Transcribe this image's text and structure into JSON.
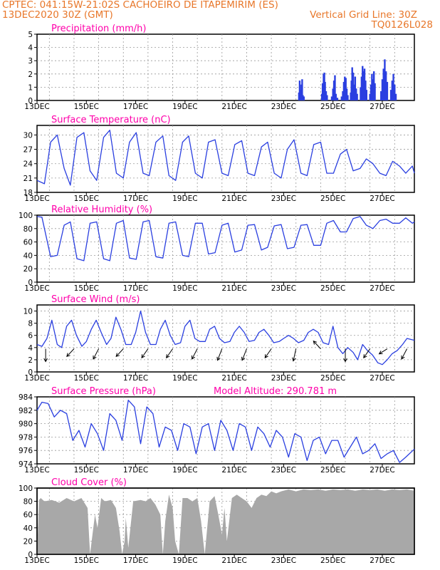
{
  "header": {
    "line1": "CPTEC:   041:15W-21:02S   CACHOEIRO DE ITAPEMIRIM (ES)",
    "line2": "13DEC2020 30Z (GMT)",
    "grid_note": "Vertical Grid Line: 30Z",
    "model_code": "TQ0126L028"
  },
  "colors": {
    "header": "#e8772a",
    "title": "#ff00aa",
    "line": "#2a3fe0",
    "bar": "#a8a8a8",
    "grid": "#999999"
  },
  "chart_data": [
    {
      "id": "precip",
      "type": "bar",
      "title": "Precipitation (mm/h)",
      "xticks": [
        "13DEC",
        "15DEC",
        "17DEC",
        "19DEC",
        "21DEC",
        "23DEC",
        "25DEC",
        "27DEC"
      ],
      "yticks": [
        "0",
        "1",
        "2",
        "3",
        "4",
        "5"
      ],
      "ylim": [
        0,
        5
      ],
      "xlim_days": [
        0,
        15.3
      ],
      "grid": true,
      "bars": [
        [
          10.62,
          0.6
        ],
        [
          10.65,
          1.5
        ],
        [
          10.68,
          0.8
        ],
        [
          10.72,
          1.2
        ],
        [
          10.75,
          1.6
        ],
        [
          10.78,
          0.4
        ],
        [
          10.82,
          0.3
        ],
        [
          11.55,
          0.5
        ],
        [
          11.58,
          1.3
        ],
        [
          11.62,
          2.0
        ],
        [
          11.65,
          2.1
        ],
        [
          11.68,
          1.4
        ],
        [
          11.72,
          0.7
        ],
        [
          11.76,
          0.4
        ],
        [
          11.95,
          0.3
        ],
        [
          12.0,
          0.9
        ],
        [
          12.04,
          1.5
        ],
        [
          12.08,
          1.9
        ],
        [
          12.12,
          0.5
        ],
        [
          12.18,
          0.2
        ],
        [
          12.35,
          0.3
        ],
        [
          12.4,
          0.7
        ],
        [
          12.44,
          1.4
        ],
        [
          12.48,
          1.8
        ],
        [
          12.52,
          1.7
        ],
        [
          12.56,
          0.9
        ],
        [
          12.6,
          0.4
        ],
        [
          12.72,
          0.6
        ],
        [
          12.75,
          1.5
        ],
        [
          12.78,
          2.5
        ],
        [
          12.82,
          2.1
        ],
        [
          12.86,
          1.2
        ],
        [
          12.9,
          1.8
        ],
        [
          12.94,
          0.9
        ],
        [
          12.98,
          0.5
        ],
        [
          13.12,
          1.0
        ],
        [
          13.16,
          1.8
        ],
        [
          13.2,
          2.6
        ],
        [
          13.24,
          2.2
        ],
        [
          13.28,
          2.4
        ],
        [
          13.32,
          1.5
        ],
        [
          13.36,
          0.8
        ],
        [
          13.5,
          0.5
        ],
        [
          13.54,
          1.2
        ],
        [
          13.58,
          2.0
        ],
        [
          13.62,
          1.6
        ],
        [
          13.66,
          2.2
        ],
        [
          13.7,
          1.3
        ],
        [
          13.95,
          0.7
        ],
        [
          14.0,
          1.6
        ],
        [
          14.05,
          2.4
        ],
        [
          14.1,
          3.1
        ],
        [
          14.15,
          2.2
        ],
        [
          14.2,
          1.4
        ],
        [
          14.35,
          0.8
        ],
        [
          14.4,
          1.5
        ],
        [
          14.45,
          2.0
        ],
        [
          14.5,
          1.2
        ],
        [
          14.55,
          0.5
        ]
      ]
    },
    {
      "id": "temp",
      "type": "line",
      "title": "Surface Temperature (nC)",
      "xticks": [
        "13DEC",
        "15DEC",
        "17DEC",
        "19DEC",
        "21DEC",
        "23DEC",
        "25DEC",
        "27DEC"
      ],
      "yticks": [
        "18",
        "21",
        "24",
        "27",
        "30"
      ],
      "ylim": [
        18,
        32
      ],
      "grid": true,
      "x": [
        0,
        0.3,
        0.55,
        0.82,
        1.1,
        1.35,
        1.62,
        1.9,
        2.15,
        2.42,
        2.7,
        2.95,
        3.22,
        3.5,
        3.75,
        4.02,
        4.3,
        4.55,
        4.82,
        5.1,
        5.35,
        5.62,
        5.9,
        6.15,
        6.42,
        6.7,
        6.95,
        7.22,
        7.5,
        7.75,
        8.02,
        8.3,
        8.55,
        8.82,
        9.1,
        9.35,
        9.62,
        9.9,
        10.15,
        10.42,
        10.7,
        10.95,
        11.22,
        11.5,
        11.75,
        12.02,
        12.3,
        12.55,
        12.82,
        13.1,
        13.35,
        13.62,
        13.9,
        14.15,
        14.42,
        14.7,
        14.95,
        15.22,
        15.3
      ],
      "values": [
        20.5,
        19.8,
        28.5,
        30.0,
        23.0,
        19.5,
        29.5,
        30.5,
        22.5,
        20.5,
        29.5,
        31.0,
        22.0,
        21.0,
        28.5,
        30.5,
        22.0,
        21.5,
        28.5,
        29.8,
        21.5,
        20.5,
        28.5,
        29.8,
        22.0,
        21.0,
        28.5,
        29.0,
        22.0,
        21.5,
        28.0,
        28.8,
        22.0,
        21.5,
        27.5,
        28.5,
        22.0,
        21.0,
        27.0,
        29.0,
        22.0,
        21.5,
        28.0,
        28.5,
        22.0,
        22.0,
        26.0,
        27.0,
        22.5,
        23.0,
        25.0,
        24.0,
        22.0,
        21.5,
        24.5,
        23.5,
        22.0,
        23.5,
        22.0
      ]
    },
    {
      "id": "rh",
      "type": "line",
      "title": "Relative Humidity (%)",
      "xticks": [
        "13DEC",
        "15DEC",
        "17DEC",
        "19DEC",
        "21DEC",
        "23DEC",
        "25DEC",
        "27DEC"
      ],
      "yticks": [
        "0",
        "20",
        "40",
        "60",
        "80",
        "100"
      ],
      "ylim": [
        0,
        100
      ],
      "grid": true,
      "x": [
        0,
        0.2,
        0.55,
        0.82,
        1.1,
        1.35,
        1.62,
        1.9,
        2.15,
        2.42,
        2.7,
        2.95,
        3.22,
        3.5,
        3.75,
        4.02,
        4.3,
        4.55,
        4.82,
        5.1,
        5.35,
        5.62,
        5.9,
        6.15,
        6.42,
        6.7,
        6.95,
        7.22,
        7.5,
        7.75,
        8.02,
        8.3,
        8.55,
        8.82,
        9.1,
        9.35,
        9.62,
        9.9,
        10.15,
        10.42,
        10.7,
        10.95,
        11.22,
        11.5,
        11.75,
        12.02,
        12.3,
        12.55,
        12.82,
        13.1,
        13.35,
        13.62,
        13.9,
        14.15,
        14.42,
        14.7,
        14.95,
        15.22,
        15.3
      ],
      "values": [
        98,
        97,
        38,
        40,
        85,
        90,
        35,
        32,
        88,
        90,
        35,
        32,
        88,
        92,
        36,
        34,
        90,
        92,
        38,
        36,
        88,
        90,
        40,
        38,
        88,
        88,
        42,
        44,
        85,
        88,
        45,
        48,
        85,
        86,
        48,
        52,
        84,
        86,
        50,
        52,
        85,
        86,
        55,
        55,
        88,
        92,
        75,
        75,
        95,
        98,
        85,
        80,
        92,
        94,
        88,
        88,
        96,
        88,
        90
      ]
    },
    {
      "id": "wind",
      "type": "line",
      "title": "Surface Wind (m/s)",
      "xticks": [
        "13DEC",
        "15DEC",
        "17DEC",
        "19DEC",
        "21DEC",
        "23DEC",
        "25DEC",
        "27DEC"
      ],
      "yticks": [
        "0",
        "2",
        "4",
        "6",
        "8",
        "10"
      ],
      "ylim": [
        0,
        11
      ],
      "grid": true,
      "x": [
        0,
        0.2,
        0.4,
        0.6,
        0.82,
        1.0,
        1.2,
        1.4,
        1.6,
        1.82,
        2.0,
        2.2,
        2.4,
        2.6,
        2.82,
        3.0,
        3.2,
        3.4,
        3.6,
        3.82,
        4.0,
        4.2,
        4.4,
        4.6,
        4.82,
        5.0,
        5.2,
        5.4,
        5.6,
        5.82,
        6.0,
        6.2,
        6.4,
        6.6,
        6.82,
        7.0,
        7.2,
        7.4,
        7.6,
        7.82,
        8.0,
        8.2,
        8.4,
        8.6,
        8.82,
        9.0,
        9.2,
        9.4,
        9.6,
        9.82,
        10.0,
        10.2,
        10.4,
        10.6,
        10.82,
        11.0,
        11.2,
        11.4,
        11.6,
        11.82,
        12.0,
        12.2,
        12.4,
        12.6,
        12.82,
        13.0,
        13.2,
        13.4,
        13.6,
        13.82,
        14.0,
        14.2,
        14.4,
        14.6,
        14.82,
        15.0,
        15.3
      ],
      "values": [
        4.5,
        4.2,
        5.5,
        8.5,
        4.5,
        4.0,
        7.5,
        8.5,
        6.0,
        4.2,
        5.0,
        7.0,
        8.5,
        6.5,
        4.5,
        5.5,
        9.0,
        7.0,
        4.5,
        4.5,
        6.5,
        10.0,
        6.5,
        4.5,
        4.5,
        7.0,
        8.5,
        6.0,
        4.5,
        4.8,
        7.5,
        8.5,
        5.5,
        5.0,
        5.0,
        7.0,
        7.5,
        5.5,
        4.8,
        5.0,
        6.5,
        7.5,
        6.5,
        5.0,
        5.2,
        6.5,
        7.0,
        6.0,
        4.8,
        5.0,
        5.5,
        6.0,
        5.5,
        4.8,
        5.2,
        6.5,
        7.0,
        6.5,
        4.8,
        4.5,
        7.5,
        4.0,
        3.0,
        4.0,
        3.2,
        2.0,
        4.5,
        3.5,
        2.8,
        1.5,
        1.2,
        2.0,
        3.0,
        3.5,
        4.5,
        5.5,
        5.2
      ],
      "arrows": [
        {
          "x": 0.35,
          "dx": 0,
          "dy": 1
        },
        {
          "x": 1.5,
          "dx": -0.8,
          "dy": 0.6
        },
        {
          "x": 2.5,
          "dx": -0.6,
          "dy": 0.8
        },
        {
          "x": 3.5,
          "dx": -0.8,
          "dy": 0.6
        },
        {
          "x": 4.5,
          "dx": -0.7,
          "dy": 0.7
        },
        {
          "x": 5.5,
          "dx": -0.7,
          "dy": 0.7
        },
        {
          "x": 6.5,
          "dx": -0.6,
          "dy": 0.8
        },
        {
          "x": 7.5,
          "dx": -0.5,
          "dy": 0.9
        },
        {
          "x": 8.5,
          "dx": -0.5,
          "dy": 0.9
        },
        {
          "x": 9.5,
          "dx": -0.7,
          "dy": 0.7
        },
        {
          "x": 10.5,
          "dx": -0.3,
          "dy": 0.95
        },
        {
          "x": 11.5,
          "dx": -0.8,
          "dy": -0.6
        },
        {
          "x": 12.5,
          "dx": 0,
          "dy": 1
        },
        {
          "x": 13.5,
          "dx": -0.7,
          "dy": 0.7
        },
        {
          "x": 14.2,
          "dx": -0.9,
          "dy": 0.4
        },
        {
          "x": 15.0,
          "dx": -0.6,
          "dy": 0.8
        }
      ]
    },
    {
      "id": "pres",
      "type": "line",
      "title": "Surface Pressure (hPa)",
      "extra_label": "Model Altitude: 290.781 m",
      "xticks": [
        "13DEC",
        "15DEC",
        "17DEC",
        "19DEC",
        "21DEC",
        "23DEC",
        "25DEC",
        "27DEC"
      ],
      "yticks": [
        "974",
        "976",
        "978",
        "980",
        "982",
        "984"
      ],
      "ylim": [
        974,
        984
      ],
      "grid": true,
      "x": [
        0,
        0.2,
        0.45,
        0.7,
        0.95,
        1.2,
        1.45,
        1.7,
        1.95,
        2.2,
        2.45,
        2.7,
        2.95,
        3.2,
        3.45,
        3.7,
        3.95,
        4.2,
        4.45,
        4.7,
        4.95,
        5.2,
        5.45,
        5.7,
        5.95,
        6.2,
        6.45,
        6.7,
        6.95,
        7.2,
        7.45,
        7.7,
        7.95,
        8.2,
        8.45,
        8.7,
        8.95,
        9.2,
        9.45,
        9.7,
        9.95,
        10.2,
        10.45,
        10.7,
        10.95,
        11.2,
        11.45,
        11.7,
        11.95,
        12.2,
        12.45,
        12.7,
        12.95,
        13.2,
        13.45,
        13.7,
        13.95,
        14.2,
        14.45,
        14.7,
        14.95,
        15.3
      ],
      "values": [
        982.0,
        983.2,
        983.0,
        981.0,
        982.0,
        981.5,
        977.5,
        979.0,
        976.5,
        980.0,
        978.5,
        976.0,
        981.5,
        980.5,
        977.5,
        983.5,
        982.5,
        977.0,
        982.5,
        981.5,
        976.5,
        979.5,
        979.0,
        976.0,
        980.0,
        979.5,
        975.5,
        979.5,
        980.0,
        976.0,
        980.5,
        979.0,
        976.0,
        980.0,
        979.5,
        976.0,
        979.5,
        978.5,
        976.5,
        979.0,
        978.0,
        975.0,
        978.5,
        978.0,
        974.5,
        977.5,
        978.0,
        975.5,
        977.5,
        977.5,
        975.0,
        976.5,
        978.0,
        975.5,
        976.0,
        977.0,
        974.8,
        975.5,
        976.0,
        974.2,
        975.0,
        976.2
      ]
    },
    {
      "id": "cloud",
      "type": "area",
      "title": "Cloud Cover (%)",
      "xticks": [
        "13DEC",
        "15DEC",
        "17DEC",
        "19DEC",
        "21DEC",
        "23DEC",
        "25DEC",
        "27DEC"
      ],
      "yticks": [
        "0",
        "20",
        "40",
        "60",
        "80",
        "100"
      ],
      "ylim": [
        0,
        100
      ],
      "grid": true,
      "x": [
        0,
        0.08,
        0.15,
        0.3,
        0.6,
        0.9,
        1.2,
        1.5,
        1.8,
        2.05,
        2.15,
        2.25,
        2.35,
        2.45,
        2.6,
        2.75,
        3.0,
        3.2,
        3.35,
        3.45,
        3.55,
        3.6,
        3.7,
        3.9,
        4.2,
        4.4,
        4.6,
        4.8,
        5.0,
        5.1,
        5.2,
        5.35,
        5.5,
        5.6,
        5.75,
        5.9,
        6.1,
        6.3,
        6.5,
        6.65,
        6.8,
        7.0,
        7.2,
        7.35,
        7.5,
        7.6,
        7.7,
        7.9,
        8.1,
        8.3,
        8.5,
        8.7,
        8.9,
        9.1,
        9.3,
        9.5,
        9.7,
        9.9,
        10.2,
        10.5,
        10.8,
        11.1,
        11.4,
        11.7,
        12.0,
        12.3,
        12.6,
        12.9,
        13.2,
        13.5,
        13.8,
        14.1,
        14.4,
        14.7,
        15.0,
        15.3
      ],
      "values": [
        0,
        82,
        85,
        80,
        82,
        78,
        85,
        80,
        85,
        70,
        0,
        30,
        60,
        40,
        85,
        80,
        82,
        70,
        35,
        0,
        20,
        55,
        10,
        80,
        82,
        80,
        85,
        75,
        60,
        0,
        50,
        90,
        70,
        20,
        0,
        85,
        85,
        80,
        85,
        50,
        0,
        80,
        88,
        60,
        30,
        70,
        20,
        85,
        90,
        85,
        80,
        70,
        85,
        90,
        88,
        95,
        92,
        95,
        98,
        95,
        98,
        97,
        98,
        96,
        98,
        97,
        98,
        96,
        98,
        97,
        98,
        96,
        98,
        97,
        98,
        96
      ]
    }
  ]
}
